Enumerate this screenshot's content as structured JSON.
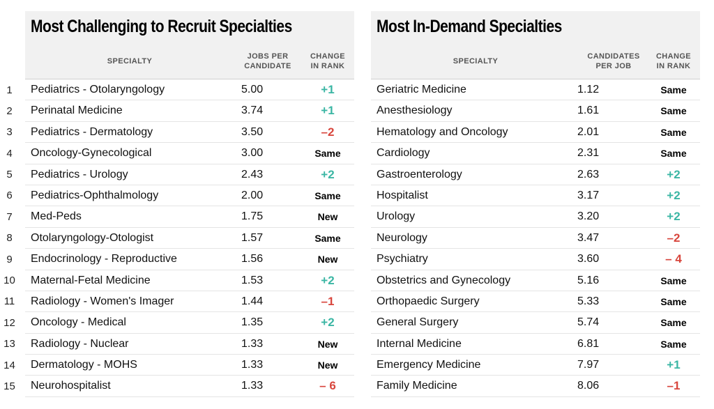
{
  "chart_data": [
    {
      "type": "table",
      "title": "Most Challenging to Recruit Specialties",
      "columns": [
        "SPECIALTY",
        "JOBS PER CANDIDATE",
        "CHANGE IN RANK"
      ],
      "column_lines": [
        [
          "SPECIALTY"
        ],
        [
          "JOBS PER",
          "CANDIDATE"
        ],
        [
          "CHANGE",
          "IN RANK"
        ]
      ],
      "rows": [
        {
          "rank": "1",
          "specialty": "Pediatrics - Otolaryngology",
          "value": "5.00",
          "change": "+1",
          "dir": "up"
        },
        {
          "rank": "2",
          "specialty": "Perinatal Medicine",
          "value": "3.74",
          "change": "+1",
          "dir": "up"
        },
        {
          "rank": "3",
          "specialty": "Pediatrics - Dermatology",
          "value": "3.50",
          "change": "–2",
          "dir": "down"
        },
        {
          "rank": "4",
          "specialty": "Oncology-Gynecological",
          "value": "3.00",
          "change": "Same",
          "dir": "same"
        },
        {
          "rank": "5",
          "specialty": "Pediatrics - Urology",
          "value": "2.43",
          "change": "+2",
          "dir": "up"
        },
        {
          "rank": "6",
          "specialty": "Pediatrics-Ophthalmology",
          "value": "2.00",
          "change": "Same",
          "dir": "same"
        },
        {
          "rank": "7",
          "specialty": "Med-Peds",
          "value": "1.75",
          "change": "New",
          "dir": "new"
        },
        {
          "rank": "8",
          "specialty": "Otolaryngology-Otologist",
          "value": "1.57",
          "change": "Same",
          "dir": "same"
        },
        {
          "rank": "9",
          "specialty": "Endocrinology - Reproductive",
          "value": "1.56",
          "change": "New",
          "dir": "new"
        },
        {
          "rank": "10",
          "specialty": "Maternal-Fetal Medicine",
          "value": "1.53",
          "change": "+2",
          "dir": "up"
        },
        {
          "rank": "11",
          "specialty": "Radiology - Women's Imager",
          "value": "1.44",
          "change": "–1",
          "dir": "down"
        },
        {
          "rank": "12",
          "specialty": "Oncology - Medical",
          "value": "1.35",
          "change": "+2",
          "dir": "up"
        },
        {
          "rank": "13",
          "specialty": "Radiology - Nuclear",
          "value": "1.33",
          "change": "New",
          "dir": "new"
        },
        {
          "rank": "14",
          "specialty": "Dermatology - MOHS",
          "value": "1.33",
          "change": "New",
          "dir": "new"
        },
        {
          "rank": "15",
          "specialty": "Neurohospitalist",
          "value": "1.33",
          "change": "– 6",
          "dir": "down"
        }
      ]
    },
    {
      "type": "table",
      "title": "Most In-Demand Specialties",
      "columns": [
        "SPECIALTY",
        "CANDIDATES PER JOB",
        "CHANGE IN RANK"
      ],
      "column_lines": [
        [
          "SPECIALTY"
        ],
        [
          "CANDIDATES",
          "PER JOB"
        ],
        [
          "CHANGE",
          "IN RANK"
        ]
      ],
      "rows": [
        {
          "specialty": "Geriatric Medicine",
          "value": "1.12",
          "change": "Same",
          "dir": "same"
        },
        {
          "specialty": "Anesthesiology",
          "value": "1.61",
          "change": "Same",
          "dir": "same"
        },
        {
          "specialty": "Hematology and Oncology",
          "value": "2.01",
          "change": "Same",
          "dir": "same"
        },
        {
          "specialty": "Cardiology",
          "value": "2.31",
          "change": "Same",
          "dir": "same"
        },
        {
          "specialty": "Gastroenterology",
          "value": "2.63",
          "change": "+2",
          "dir": "up"
        },
        {
          "specialty": "Hospitalist",
          "value": "3.17",
          "change": "+2",
          "dir": "up"
        },
        {
          "specialty": "Urology",
          "value": "3.20",
          "change": "+2",
          "dir": "up"
        },
        {
          "specialty": "Neurology",
          "value": "3.47",
          "change": "–2",
          "dir": "down"
        },
        {
          "specialty": "Psychiatry",
          "value": "3.60",
          "change": "– 4",
          "dir": "down"
        },
        {
          "specialty": "Obstetrics and Gynecology",
          "value": "5.16",
          "change": "Same",
          "dir": "same"
        },
        {
          "specialty": "Orthopaedic Surgery",
          "value": "5.33",
          "change": "Same",
          "dir": "same"
        },
        {
          "specialty": "General Surgery",
          "value": "5.74",
          "change": "Same",
          "dir": "same"
        },
        {
          "specialty": "Internal Medicine",
          "value": "6.81",
          "change": "Same",
          "dir": "same"
        },
        {
          "specialty": "Emergency Medicine",
          "value": "7.97",
          "change": "+1",
          "dir": "up"
        },
        {
          "specialty": "Family Medicine",
          "value": "8.06",
          "change": "–1",
          "dir": "down"
        }
      ]
    }
  ],
  "colors": {
    "increase": "#3bb6a4",
    "decrease": "#d8463d",
    "header_background": "#f1f1f1"
  }
}
